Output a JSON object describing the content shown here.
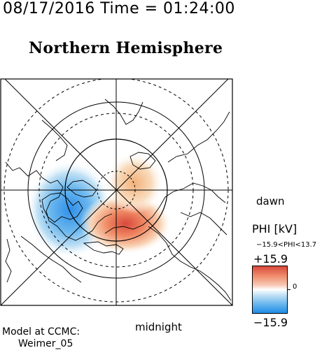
{
  "header": {
    "timestamp": "08/17/2016 Time = 01:24:00",
    "title": "Northern Hemisphere"
  },
  "map": {
    "dawn_label": "dawn",
    "midnight_label": "midnight"
  },
  "colorbar": {
    "title": "PHI [kV]",
    "range_text": "−15.9<PHI<13.7",
    "max_label": "+15.9",
    "min_label": "−15.9",
    "zero_label": "0",
    "colors": {
      "positive": "#d6473a",
      "mid": "#ffffff",
      "negative": "#1f8ce6"
    }
  },
  "credit": {
    "line1": "Model at CCMC:",
    "line2": "Weimer_05"
  }
}
